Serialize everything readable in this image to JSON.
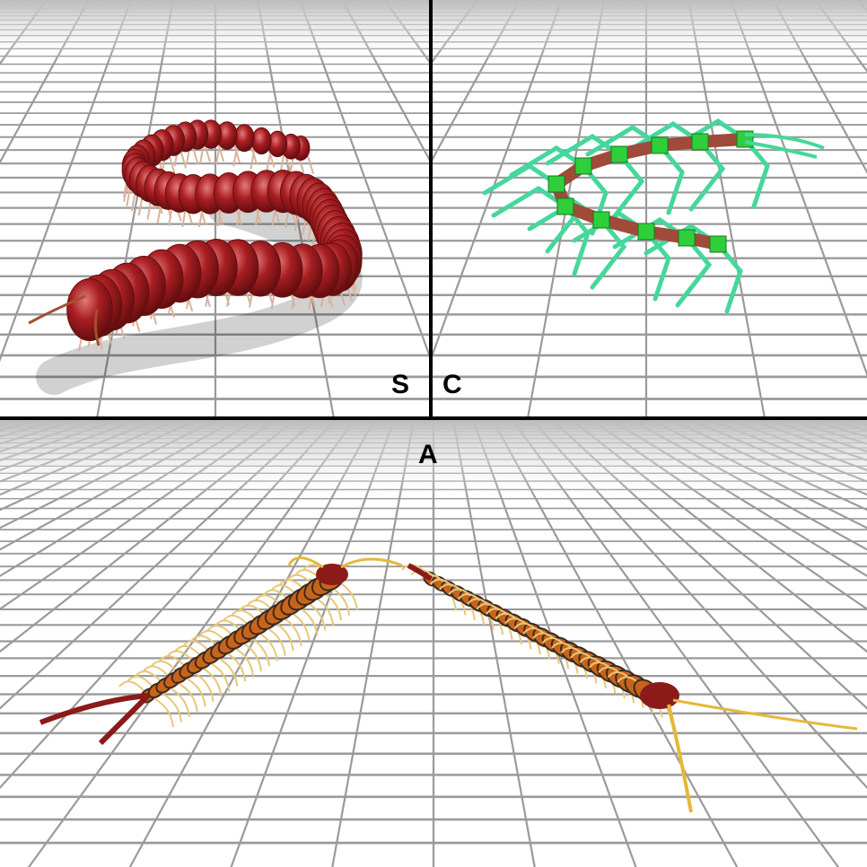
{
  "panels": {
    "top_left": {
      "label": "S",
      "creature": "millipede-like",
      "color": "#9c1b1e"
    },
    "top_right": {
      "label": "C",
      "creature": "centipede-skeleton",
      "body_color": "#a04a3a",
      "joint_color": "#2fcf3c",
      "leg_color": "#3ddc97"
    },
    "bottom": {
      "label": "A",
      "creature": "centipede-pair",
      "segment_color": "#c8641a",
      "leg_color": "#e8c77a",
      "head_color": "#8b1a18"
    }
  },
  "colors": {
    "grid_line": "#9a9a9a",
    "floor": "#ffffff",
    "divider": "#000000",
    "horizon_fade": "#d9d9d9"
  }
}
